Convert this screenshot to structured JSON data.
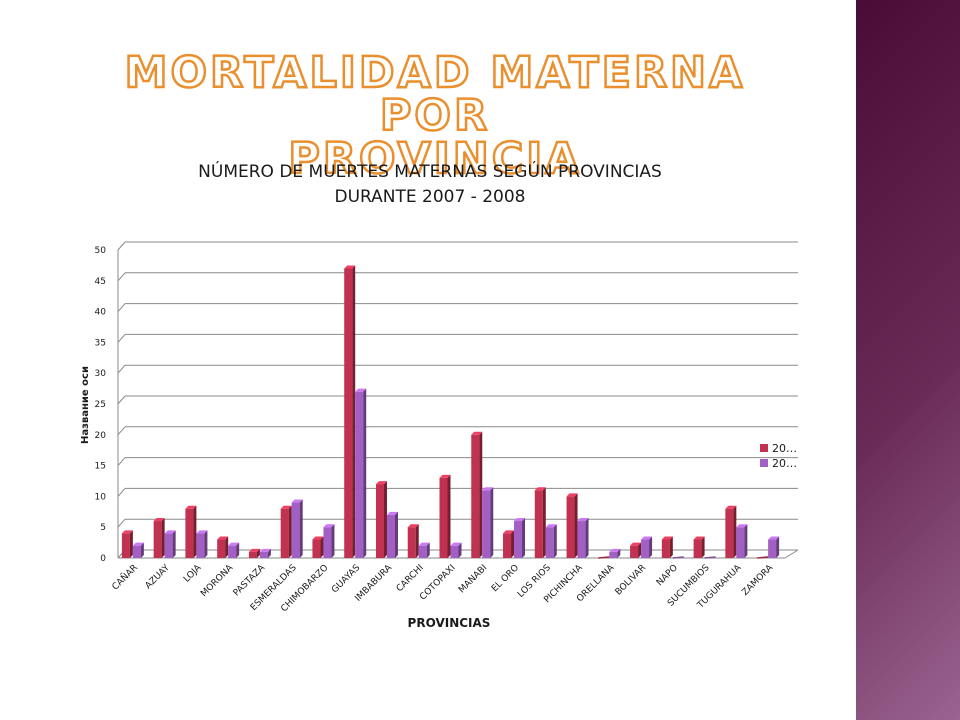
{
  "slide": {
    "title_line1": "MORTALIDAD MATERNA POR",
    "title_line2": "PROVINCIA"
  },
  "colors": {
    "series_1": "#c0324f",
    "series_2": "#a260c4",
    "title_outline": "#ea8f2e",
    "side_band": "#5a1a48"
  },
  "chart_data": {
    "type": "bar",
    "title": [
      "NÚMERO DE MUERTES MATERNAS SEGÚN PROVINCIAS",
      "DURANTE 2007 - 2008"
    ],
    "xlabel": "PROVINCIAS",
    "ylabel": "Название оси",
    "ylim": [
      0,
      50
    ],
    "yticks": [
      0,
      5,
      10,
      15,
      20,
      25,
      30,
      35,
      40,
      45,
      50
    ],
    "grid": true,
    "legend_position": "right",
    "categories": [
      "CAÑAR",
      "AZUAY",
      "LOJA",
      "MORONA",
      "PASTAZA",
      "ESMERALDAS",
      "CHIMOBARZO",
      "GUAYAS",
      "IMBABURA",
      "CARCHI",
      "COTOPAXI",
      "MANABI",
      "EL ORO",
      "LOS RIOS",
      "PICHINCHA",
      "ORELLANA",
      "BOLIVAR",
      "NAPO",
      "SUCUMBIOS",
      "TUGURAHUA",
      "ZAMORA"
    ],
    "series": [
      {
        "name": "20…",
        "values": [
          4,
          6,
          8,
          3,
          1,
          8,
          3,
          47,
          12,
          5,
          13,
          20,
          4,
          11,
          10,
          0,
          2,
          3,
          3,
          8,
          0
        ]
      },
      {
        "name": "20…",
        "values": [
          2,
          4,
          4,
          2,
          1,
          9,
          5,
          27,
          7,
          2,
          2,
          11,
          6,
          5,
          6,
          1,
          3,
          0,
          0,
          5,
          3
        ]
      }
    ]
  }
}
